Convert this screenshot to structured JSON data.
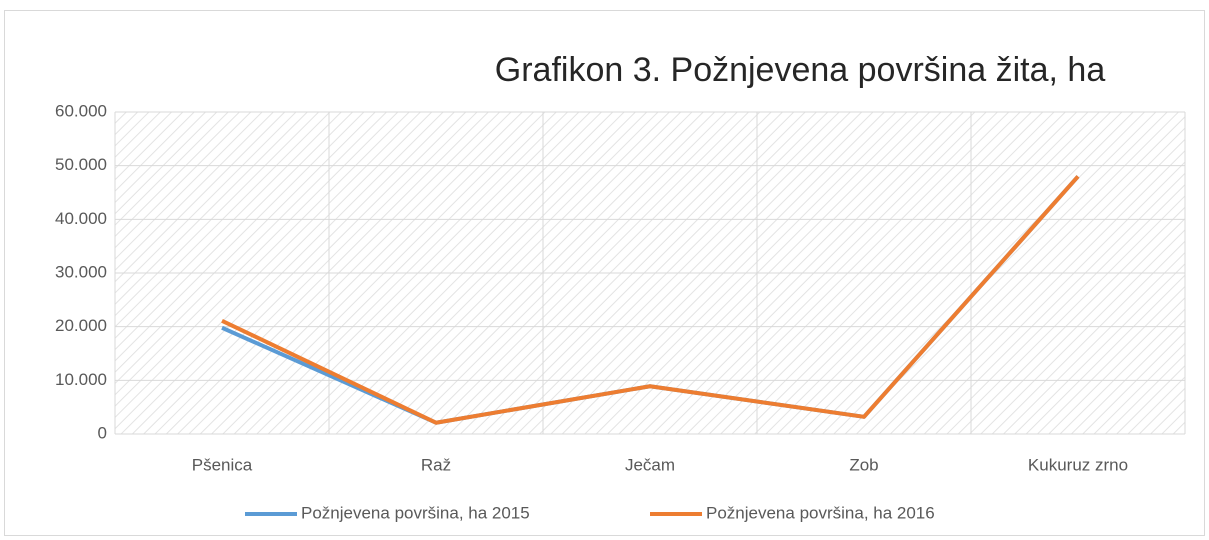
{
  "chart_data": {
    "type": "line",
    "title": "Grafikon 3. Požnjevena površina žita, ha",
    "categories": [
      "Pšenica",
      "Raž",
      "Ječam",
      "Zob",
      "Kukuruz zrno"
    ],
    "series": [
      {
        "name": "Požnjevena površina, ha 2015",
        "color": "#5b9bd5",
        "values": [
          19800,
          2100,
          8900,
          3200,
          48000
        ]
      },
      {
        "name": "Požnjevena površina, ha 2016",
        "color": "#ed7d31",
        "values": [
          21100,
          2100,
          8900,
          3200,
          48000
        ]
      }
    ],
    "ylim": [
      0,
      60000
    ],
    "yticks": [
      0,
      {
        "value": 10000,
        "label": "10.000"
      },
      {
        "value": 20000,
        "label": "20.000"
      },
      {
        "value": 30000,
        "label": "30.000"
      },
      {
        "value": 40000,
        "label": "40.000"
      },
      {
        "value": 50000,
        "label": "50.000"
      },
      {
        "value": 60000,
        "label": "60.000"
      }
    ],
    "grid": true,
    "legend": "bottom"
  }
}
